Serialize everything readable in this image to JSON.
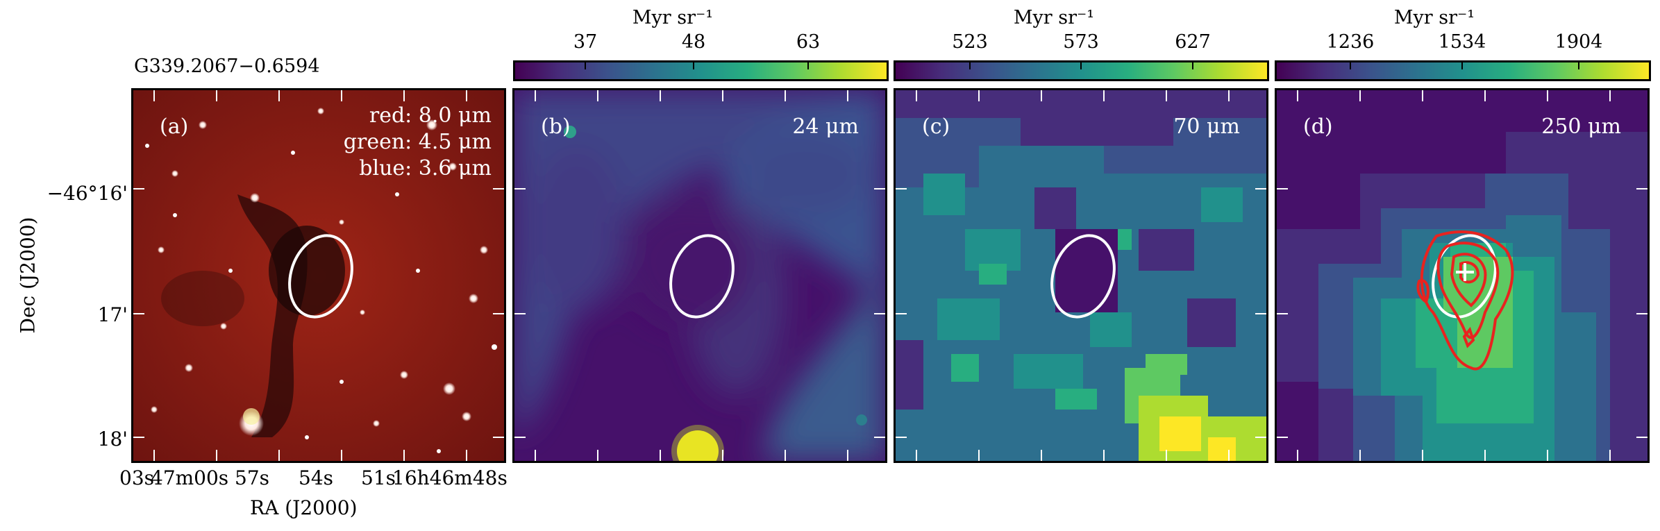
{
  "figure": {
    "source_name": "G339.2067−0.6594",
    "colorbar_unit": "Myr sr⁻¹",
    "axes": {
      "ylabel": "Dec (J2000)",
      "xlabel": "RA (J2000)",
      "y_ticks": [
        "−46°16'",
        "17'",
        "18'"
      ],
      "x_ticks": [
        "03s",
        "47m00s",
        "57s",
        "54s",
        "51s",
        "16h46m48s"
      ]
    },
    "panels": [
      {
        "id": "a",
        "label": "(a)",
        "legend": [
          "red: 8.0 μm",
          "green: 4.5 μm",
          "blue: 3.6 μm"
        ]
      },
      {
        "id": "b",
        "label": "(b)",
        "wavelength": "24 μm",
        "colorbar_ticks": [
          "37",
          "48",
          "63"
        ]
      },
      {
        "id": "c",
        "label": "(c)",
        "wavelength": "70 μm",
        "colorbar_ticks": [
          "523",
          "573",
          "627"
        ]
      },
      {
        "id": "d",
        "label": "(d)",
        "wavelength": "250 μm",
        "colorbar_ticks": [
          "1236",
          "1534",
          "1904"
        ]
      }
    ],
    "colors": {
      "viridis_dark": "#440154",
      "viridis_yellow": "#fde725",
      "ellipse": "#ffffff",
      "contour": "#e8231f",
      "rgb_background": "#8a1a12"
    }
  }
}
